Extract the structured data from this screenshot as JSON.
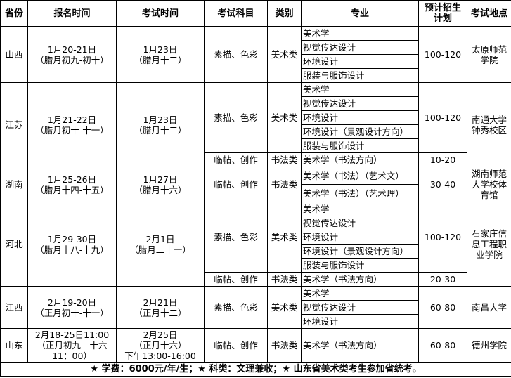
{
  "headers": [
    "省份",
    "报名时间",
    "考试时间",
    "考试科目",
    "类别",
    "专业",
    "预计招生计划",
    "考试地点"
  ],
  "provinces": [
    {
      "name": "山西",
      "reg": [
        "1月20-21日",
        "（腊月初九-初十）"
      ],
      "exam": [
        "1月23日",
        "（腊月十二）"
      ],
      "location": [
        "太原师范",
        "学院"
      ],
      "groups": [
        {
          "subjects": "素描、色彩",
          "category": "美术类",
          "plan": "100-120",
          "majors": [
            "美术学",
            "视觉传达设计",
            "环境设计",
            "服装与服饰设计"
          ]
        }
      ]
    },
    {
      "name": "江苏",
      "reg": [
        "1月21-22日",
        "（腊月初十-十一）"
      ],
      "exam": [
        "1月23日",
        "（腊月十二）"
      ],
      "location": [
        "南通大学",
        "钟秀校区"
      ],
      "groups": [
        {
          "subjects": "素描、色彩",
          "category": "美术类",
          "plan": "100-120",
          "majors": [
            "美术学",
            "视觉传达设计",
            "环境设计",
            "环境设计（景观设计方向）",
            "服装与服饰设计"
          ]
        },
        {
          "subjects": "临帖、创作",
          "category": "书法类",
          "plan": "10-20",
          "majors": [
            "美术学（书法方向）"
          ]
        }
      ]
    },
    {
      "name": "湖南",
      "reg": [
        "1月25-26日",
        "（腊月十四-十五）"
      ],
      "exam": [
        "1月27日",
        "（腊月十六）"
      ],
      "location": [
        "湖南师范",
        "大学校体",
        "育馆"
      ],
      "groups": [
        {
          "subjects": "临帖、创作",
          "category": "书法类",
          "plan": "30-40",
          "majors": [
            "美术学（书法）（艺术文）",
            "美术学（书法）（艺术理）"
          ]
        }
      ]
    },
    {
      "name": "河北",
      "reg": [
        "1月29-30日",
        "（腊月十八-十九）"
      ],
      "exam": [
        "2月1日",
        "（腊月二十一）"
      ],
      "location": [
        "石家庄信",
        "息工程职",
        "业学院"
      ],
      "groups": [
        {
          "subjects": "素描、色彩",
          "category": "美术类",
          "plan": "100-120",
          "majors": [
            "美术学",
            "视觉传达设计",
            "环境设计",
            "环境设计（景观设计方向）",
            "服装与服饰设计"
          ]
        },
        {
          "subjects": "临帖、创作",
          "category": "书法类",
          "plan": "20-30",
          "majors": [
            "美术学（书法方向）"
          ]
        }
      ]
    },
    {
      "name": "江西",
      "reg": [
        "2月19-20日",
        "（正月初十-十一）"
      ],
      "exam": [
        "2月21日",
        "（正月十二）"
      ],
      "location": [
        "南昌大学"
      ],
      "groups": [
        {
          "subjects": "素描、色彩",
          "category": "美术类",
          "plan": "60-80",
          "majors": [
            "美术学",
            "视觉传达设计",
            "环境设计"
          ]
        }
      ]
    },
    {
      "name": "山东",
      "reg": [
        "2月18-25日11:00",
        "（正月初九—十六",
        "11：00）"
      ],
      "exam": [
        "2月25日",
        "（正月十六）",
        "下午13:00-16:00"
      ],
      "location": [
        "德州学院"
      ],
      "groups": [
        {
          "subjects": "临帖、创作",
          "category": "书法类",
          "plan": "60-80",
          "majors": [
            "美术学（书法方向）"
          ]
        }
      ]
    }
  ],
  "footer": "★ 学费：6000元/年/生；★ 科类：文理兼收；★ 山东省美术类考生参加省统考。"
}
